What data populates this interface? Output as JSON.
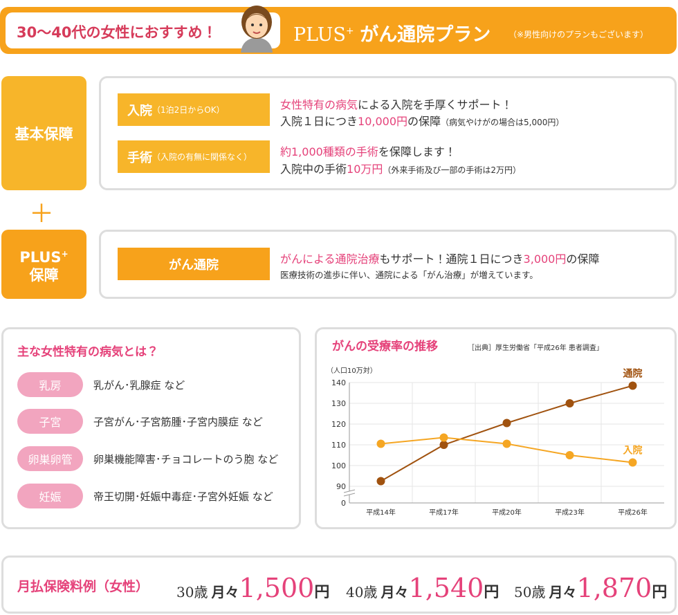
{
  "header": {
    "recommend": "30〜40代の女性におすすめ！",
    "plan": "PLUS",
    "plan_sup": "+",
    "plan_name": "がん通院プラン",
    "note": "（※男性向けのプランもございます）"
  },
  "basic": {
    "label": "基本保障",
    "items": [
      {
        "name": "入院",
        "note": "（1泊2日からOK）",
        "lines": [
          [
            "女性特有の病気",
            "による入院を手厚くサポート！"
          ],
          [
            "入院１日につき",
            "10,000円",
            "の保障",
            "（病気やけがの場合は5,000円）"
          ]
        ]
      },
      {
        "name": "手術",
        "note": "（入院の有無に関係なく）",
        "lines": [
          [
            "約1,000種類の手術",
            "を保障します！"
          ],
          [
            "入院中の手術",
            "10万円",
            "（外来手術及び一部の手術は2万円）"
          ]
        ]
      }
    ]
  },
  "plus_sign": "＋",
  "plus": {
    "label": "PLUS",
    "label_sup": "+",
    "label2": "保障",
    "items": [
      {
        "name": "がん通院",
        "lines": [
          [
            "がんによる通院治療",
            "もサポート！通院１日につき",
            "3,000円",
            "の保障"
          ],
          [
            "医療技術の進歩に伴い、通院による「がん治療」が増えています。"
          ]
        ]
      }
    ]
  },
  "diseases": {
    "title": "主な女性特有の病気とは？",
    "rows": [
      [
        "乳房",
        "乳がん･乳腺症 など"
      ],
      [
        "子宮",
        "子宮がん･子宮筋腫･子宮内膜症 など"
      ],
      [
        "卵巣卵管",
        "卵巣機能障害･チョコレートのう胞 など"
      ],
      [
        "妊娠",
        "帝王切開･妊娠中毒症･子宮外妊娠 など"
      ]
    ]
  },
  "chart_data": {
    "type": "line",
    "title": "がんの受療率の推移",
    "source": "［出典］厚生労働省「平成26年 患者調査」",
    "y_label": "（人口10万対）",
    "categories": [
      "平成14年",
      "平成17年",
      "平成20年",
      "平成23年",
      "平成26年"
    ],
    "series": [
      {
        "name": "通院",
        "color": "#a0520f",
        "values": [
          92.5,
          110,
          120.5,
          130,
          138.5
        ]
      },
      {
        "name": "入院",
        "color": "#f5a623",
        "values": [
          110.5,
          113.5,
          110.5,
          105,
          101.5
        ]
      }
    ],
    "ylim": [
      0,
      140
    ],
    "yticks": [
      0,
      90,
      100,
      110,
      120,
      130,
      140
    ],
    "axis_break": true,
    "grid": true
  },
  "premium": {
    "label": "月払保険料例（女性）",
    "examples": [
      {
        "age": "30歳",
        "prefix": "月々",
        "amount": "1,500",
        "unit": "円"
      },
      {
        "age": "40歳",
        "prefix": "月々",
        "amount": "1,540",
        "unit": "円"
      },
      {
        "age": "50歳",
        "prefix": "月々",
        "amount": "1,870",
        "unit": "円"
      }
    ]
  }
}
